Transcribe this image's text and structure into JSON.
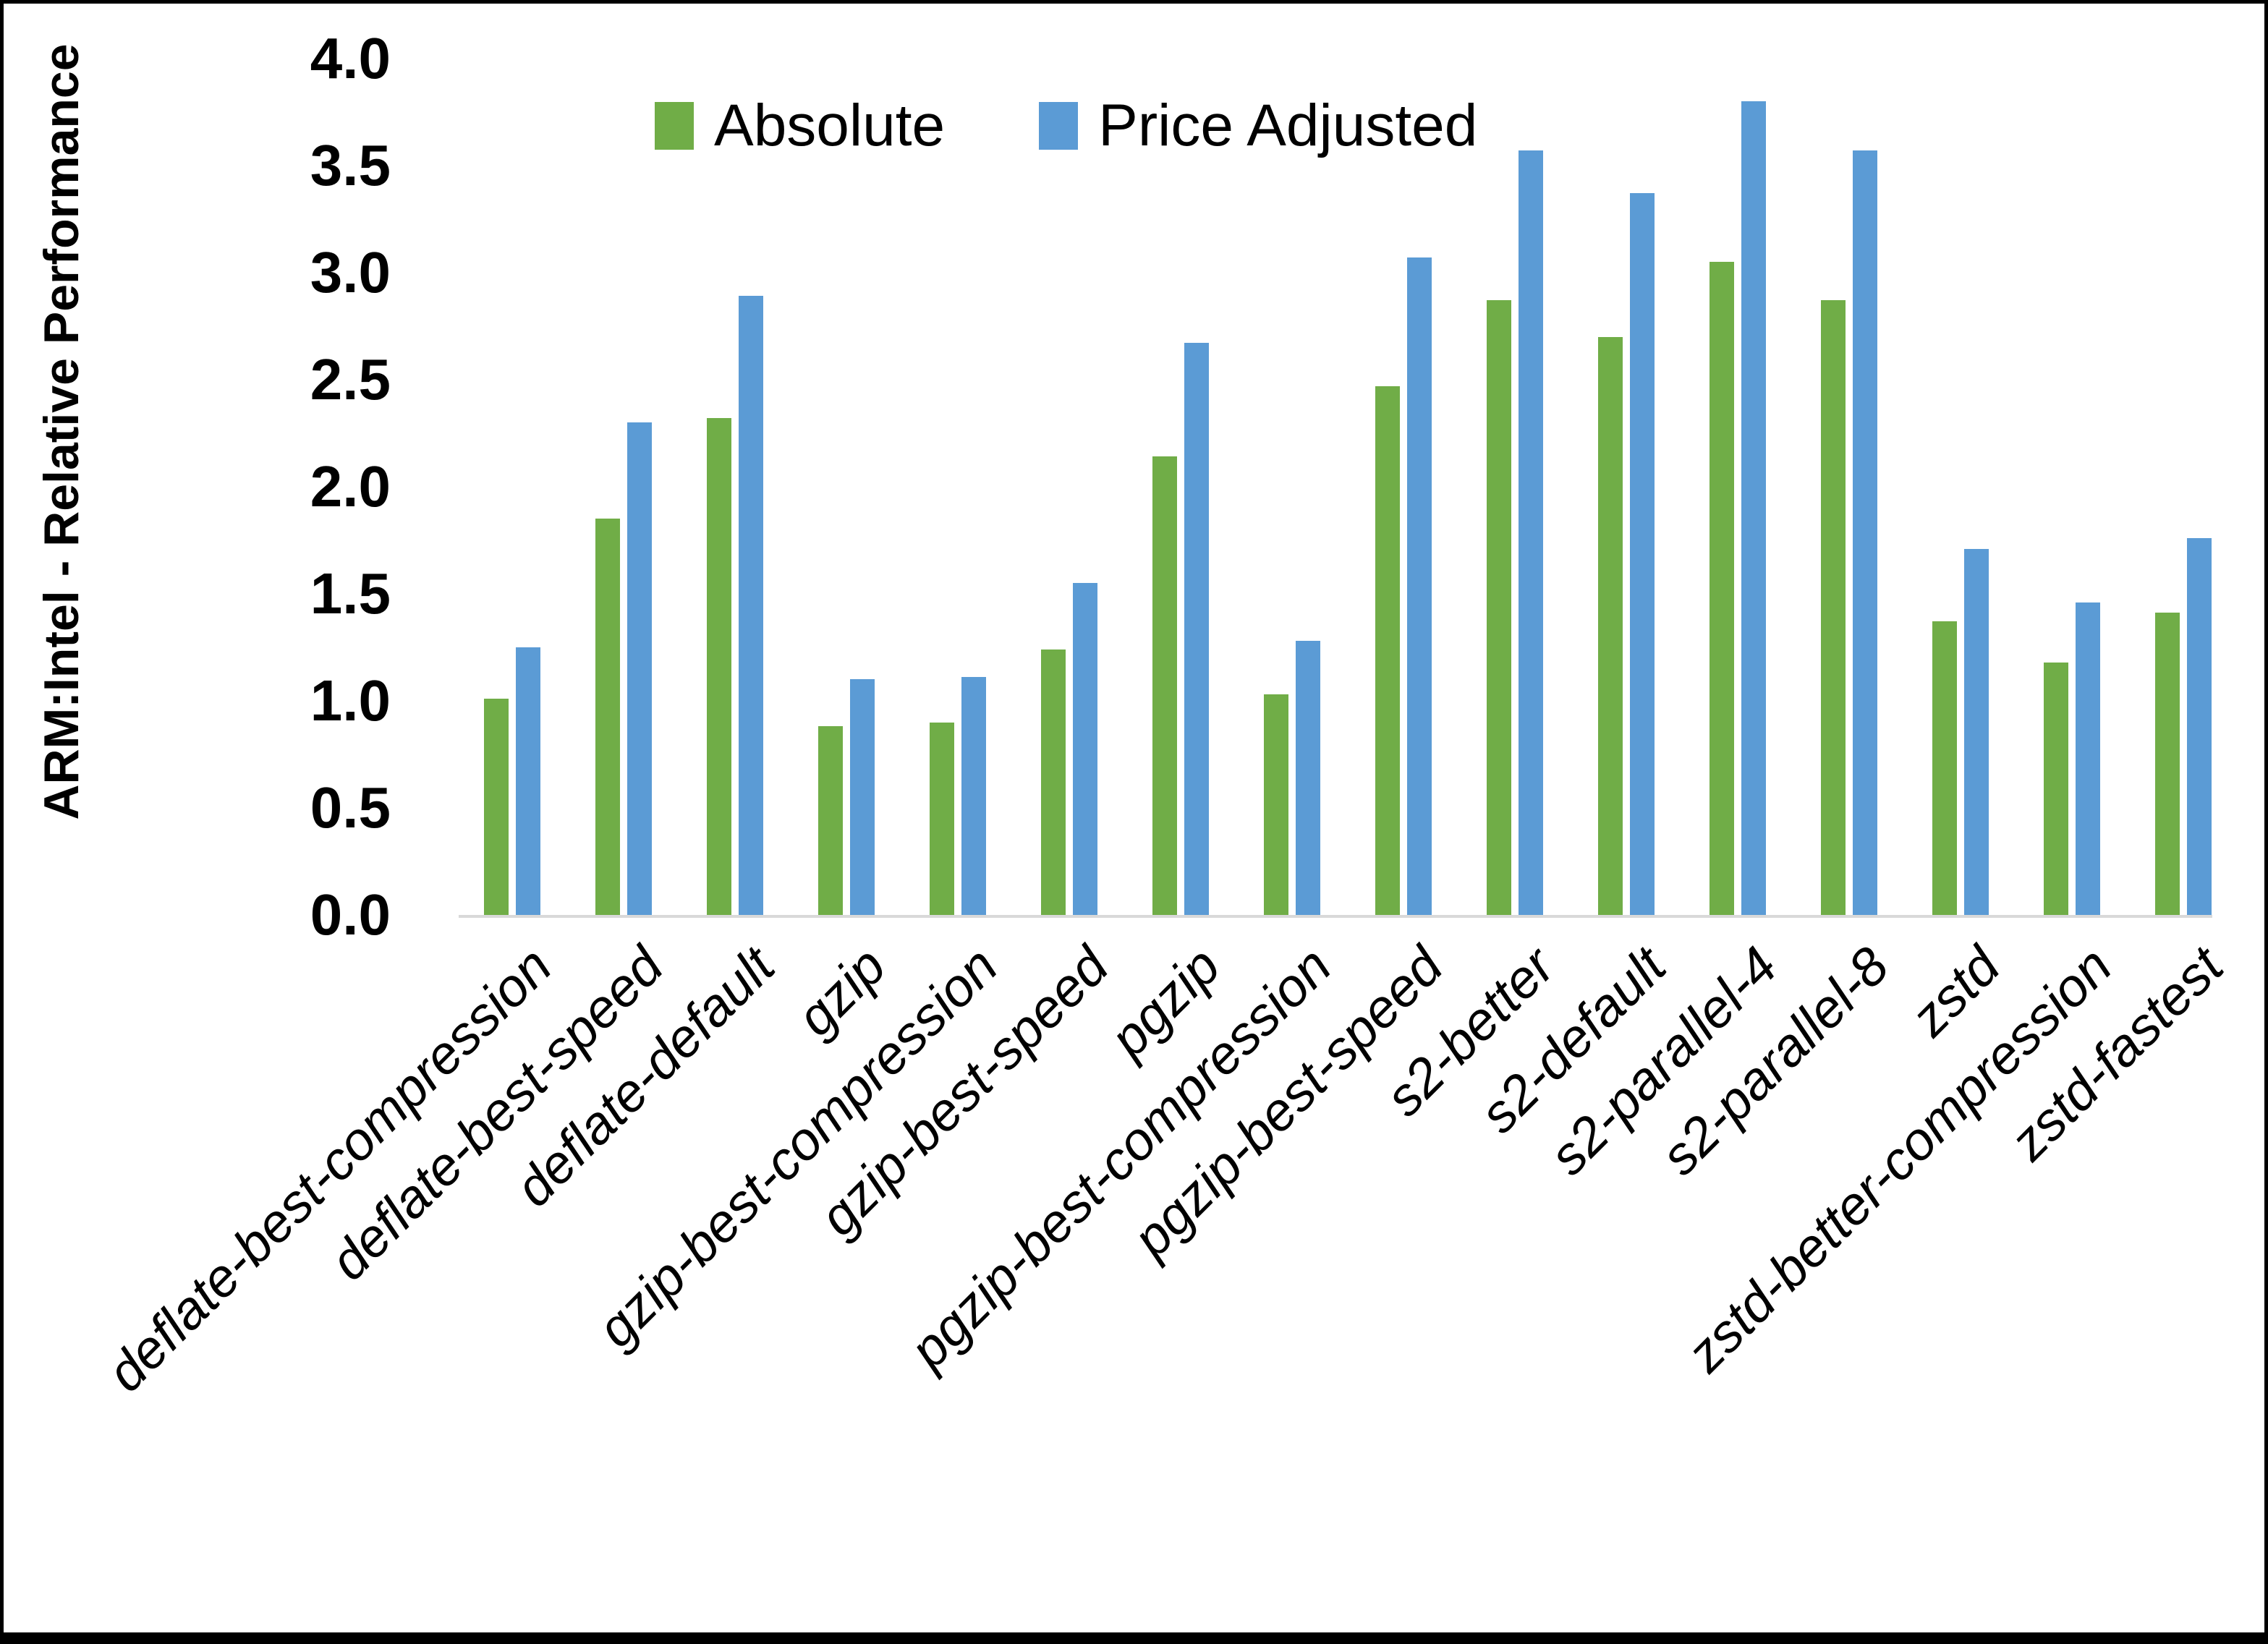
{
  "page": {
    "background": "#ffffff",
    "border_color": "#000000"
  },
  "chart_data": {
    "type": "bar",
    "title": "",
    "xlabel": "",
    "ylabel": "ARM:Intel - Relative Performance",
    "ylim": [
      0.0,
      4.0
    ],
    "ytick_step": 0.5,
    "ytick_labels": [
      "0.0",
      "0.5",
      "1.0",
      "1.5",
      "2.0",
      "2.5",
      "3.0",
      "3.5",
      "4.0"
    ],
    "grid": false,
    "legend_position": "top-center",
    "axis_line_color": "#d9d9d9",
    "categories": [
      "deflate-best-compression",
      "deflate-best-speed",
      "deflate-default",
      "gzip",
      "gzip-best-compression",
      "gzip-best-speed",
      "pgzip",
      "pgzip-best-compression",
      "pgzip-best-speed",
      "s2-better",
      "s2-default",
      "s2-parallel-4",
      "s2-parallel-8",
      "zstd",
      "zstd-better-compression",
      "zstd-fastest"
    ],
    "series": [
      {
        "name": "Absolute",
        "color": "#70AD47",
        "values": [
          1.01,
          1.85,
          2.32,
          0.88,
          0.9,
          1.24,
          2.14,
          1.03,
          2.47,
          2.87,
          2.7,
          3.05,
          2.87,
          1.37,
          1.18,
          1.41
        ]
      },
      {
        "name": "Price Adjusted",
        "color": "#5B9BD5",
        "values": [
          1.25,
          2.3,
          2.89,
          1.1,
          1.11,
          1.55,
          2.67,
          1.28,
          3.07,
          3.57,
          3.37,
          3.8,
          3.57,
          1.71,
          1.46,
          1.76
        ]
      }
    ]
  }
}
